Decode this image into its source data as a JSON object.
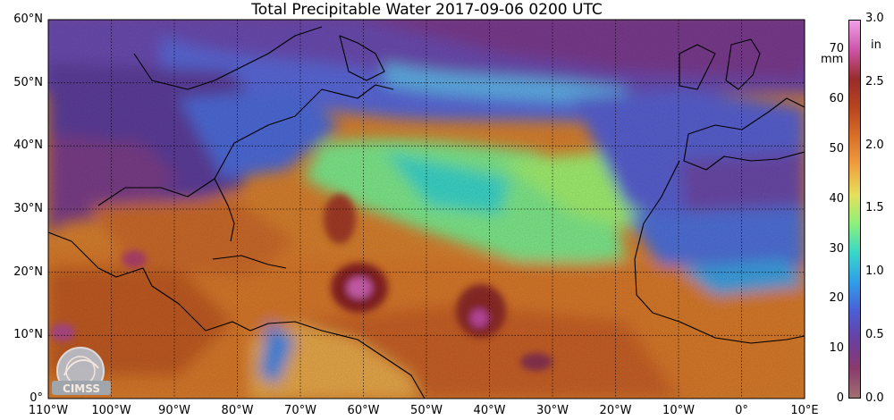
{
  "title": "Total Precipitable Water  2017-09-06 0200 UTC",
  "lat_labels": [
    "60°N",
    "50°N",
    "40°N",
    "30°N",
    "20°N",
    "10°N",
    "0°"
  ],
  "lon_labels": [
    "110°W",
    "100°W",
    "90°W",
    "80°W",
    "70°W",
    "60°W",
    "50°W",
    "40°W",
    "30°W",
    "20°W",
    "10°W",
    "0°",
    "10°E"
  ],
  "colorbar": {
    "mm_unit": "mm",
    "in_unit": "in",
    "mm_ticks": [
      "70",
      "60",
      "50",
      "40",
      "30",
      "20",
      "10",
      "0"
    ],
    "in_ticks": [
      "3.0",
      "2.5",
      "2.0",
      "1.5",
      "1.0",
      "0.5",
      "0.0"
    ],
    "range_mm": [
      0,
      76
    ],
    "colors": [
      "#a07070",
      "#8a3a6e",
      "#6a3fa0",
      "#4a5fd8",
      "#2f9fe8",
      "#38d8c8",
      "#8ef07a",
      "#e6e05a",
      "#f0a040",
      "#d8702a",
      "#b8441e",
      "#982c2c",
      "#cc55aa",
      "#f0a0e8"
    ]
  },
  "map": {
    "lon_range": [
      -110,
      10
    ],
    "lat_range": [
      0,
      60
    ],
    "features": [
      "Hurricane Irma",
      "Tropical system east of Irma"
    ]
  },
  "logo_text": "CIMSS"
}
